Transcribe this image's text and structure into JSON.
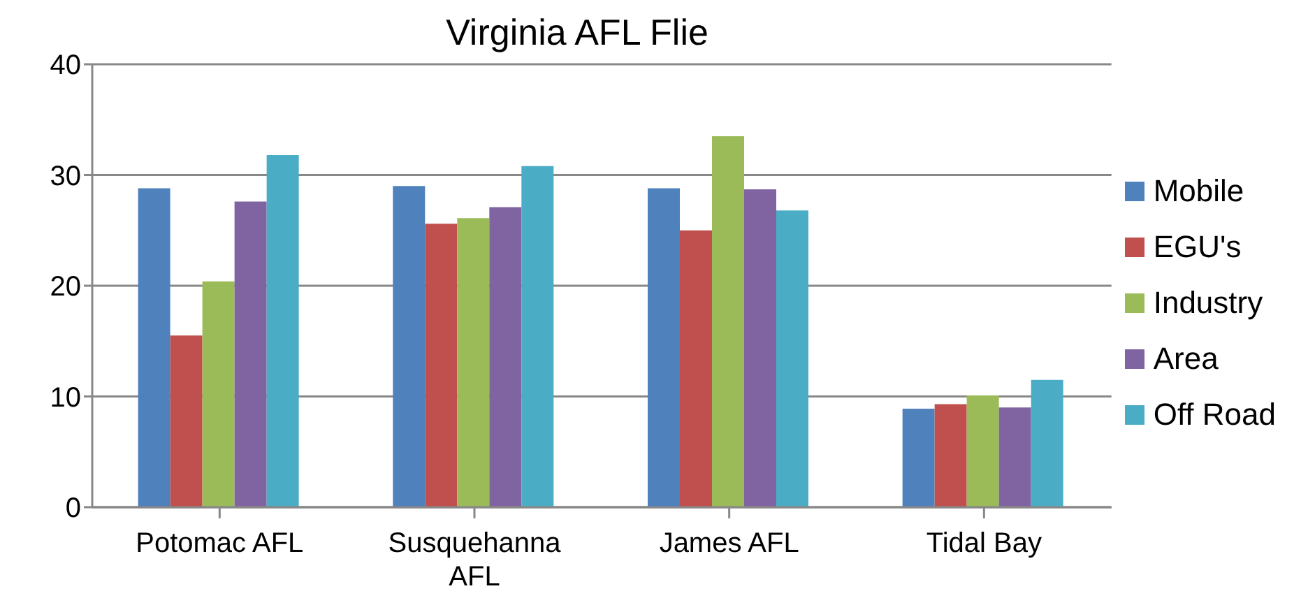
{
  "chart_data": {
    "type": "bar",
    "title": "Virginia AFL Flie",
    "categories": [
      "Potomac AFL",
      "Susquehanna AFL",
      "James AFL",
      "Tidal Bay"
    ],
    "series": [
      {
        "name": "Mobile",
        "color": "#4f81bd",
        "values": [
          28.8,
          29.0,
          28.8,
          8.9
        ]
      },
      {
        "name": "EGU's",
        "color": "#c0504d",
        "values": [
          15.5,
          25.6,
          25.0,
          9.3
        ]
      },
      {
        "name": "Industry",
        "color": "#9bbb59",
        "values": [
          20.4,
          26.1,
          33.5,
          10.1
        ]
      },
      {
        "name": "Area",
        "color": "#8064a2",
        "values": [
          27.6,
          27.1,
          28.7,
          9.0
        ]
      },
      {
        "name": "Off Road",
        "color": "#4bacc6",
        "values": [
          31.8,
          30.8,
          26.8,
          11.5
        ]
      }
    ],
    "ylim": [
      0,
      40
    ],
    "yticks": [
      0,
      10,
      20,
      30,
      40
    ],
    "grid": "y",
    "legend": "right"
  }
}
